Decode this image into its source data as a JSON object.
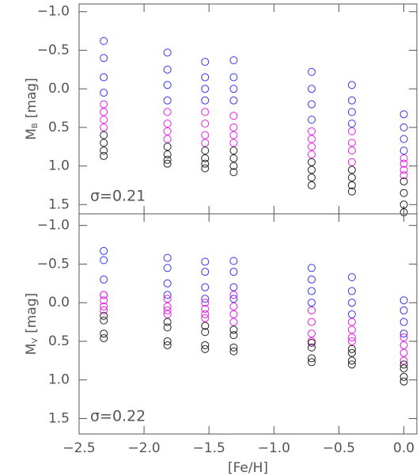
{
  "chart_data": [
    {
      "type": "scatter",
      "ylabel_main": "M",
      "ylabel_sub": "B",
      "ylabel_unit": "[mag]",
      "annotation": "σ=0.21",
      "xlim": [
        -2.5,
        0.1
      ],
      "ylim": [
        -1.1,
        1.62
      ],
      "y_inverted": true,
      "xticks": [
        -2.5,
        -2.0,
        -1.5,
        -1.0,
        -0.5,
        0.0
      ],
      "yticks": [
        {
          "value": -1.0,
          "label": "−1.0"
        },
        {
          "value": -0.5,
          "label": "−0.5"
        },
        {
          "value": 0.0,
          "label": "0.0"
        },
        {
          "value": 0.5,
          "label": "0.5"
        },
        {
          "value": 1.0,
          "label": "1.0"
        },
        {
          "value": 1.5,
          "label": "1.5"
        }
      ],
      "series": [
        {
          "color": "#3535e8",
          "x": [
            -2.31,
            -2.31,
            -2.31,
            -2.31,
            -1.82,
            -1.82,
            -1.82,
            -1.82,
            -1.53,
            -1.53,
            -1.53,
            -1.53,
            -1.31,
            -1.31,
            -1.31,
            -1.31,
            -0.71,
            -0.71,
            -0.71,
            -0.71,
            -0.4,
            -0.4,
            -0.4,
            -0.4,
            0.0,
            0.0,
            0.0,
            0.0
          ],
          "values": [
            -0.62,
            -0.4,
            -0.15,
            0.05,
            -0.47,
            -0.25,
            -0.05,
            0.15,
            -0.35,
            -0.15,
            0.0,
            0.15,
            -0.37,
            -0.15,
            0.0,
            0.15,
            -0.22,
            0.0,
            0.2,
            0.4,
            -0.05,
            0.15,
            0.3,
            0.45,
            0.33,
            0.5,
            0.65,
            0.8
          ]
        },
        {
          "color": "#e020e0",
          "x": [
            -2.31,
            -2.31,
            -2.31,
            -2.31,
            -1.82,
            -1.82,
            -1.82,
            -1.82,
            -1.53,
            -1.53,
            -1.53,
            -1.53,
            -1.31,
            -1.31,
            -1.31,
            -1.31,
            -0.71,
            -0.71,
            -0.71,
            -0.71,
            -0.4,
            -0.4,
            -0.4,
            -0.4,
            0.0,
            0.0,
            0.0,
            0.0
          ],
          "values": [
            0.2,
            0.3,
            0.4,
            0.5,
            0.3,
            0.45,
            0.55,
            0.65,
            0.3,
            0.45,
            0.6,
            0.7,
            0.35,
            0.5,
            0.6,
            0.7,
            0.55,
            0.65,
            0.75,
            0.85,
            0.55,
            0.7,
            0.8,
            0.95,
            0.9,
            0.97,
            1.05,
            1.12
          ]
        },
        {
          "color": "#222222",
          "x": [
            -2.31,
            -2.31,
            -2.31,
            -2.31,
            -1.82,
            -1.82,
            -1.82,
            -1.82,
            -1.53,
            -1.53,
            -1.53,
            -1.53,
            -1.31,
            -1.31,
            -1.31,
            -1.31,
            -0.71,
            -0.71,
            -0.71,
            -0.71,
            -0.4,
            -0.4,
            -0.4,
            -0.4,
            0.0,
            0.0,
            0.0,
            0.0
          ],
          "values": [
            0.6,
            0.7,
            0.8,
            0.87,
            0.75,
            0.85,
            0.92,
            0.97,
            0.8,
            0.9,
            0.97,
            1.03,
            0.8,
            0.9,
            1.0,
            1.08,
            0.95,
            1.05,
            1.15,
            1.25,
            1.05,
            1.15,
            1.25,
            1.33,
            1.2,
            1.35,
            1.5,
            1.6
          ]
        }
      ]
    },
    {
      "type": "scatter",
      "ylabel_main": "M",
      "ylabel_sub": "V",
      "ylabel_unit": "[mag]",
      "annotation": "σ=0.22",
      "xlabel": "[Fe/H]",
      "xlim": [
        -2.5,
        0.1
      ],
      "ylim": [
        -1.15,
        1.7
      ],
      "y_inverted": true,
      "xticks": [
        {
          "value": -2.5,
          "label": "−2.5"
        },
        {
          "value": -2.0,
          "label": "−2.0"
        },
        {
          "value": -1.5,
          "label": "−1.5"
        },
        {
          "value": -1.0,
          "label": "−1.0"
        },
        {
          "value": -0.5,
          "label": "−0.5"
        },
        {
          "value": 0.0,
          "label": "0.0"
        }
      ],
      "yticks": [
        {
          "value": -1.0,
          "label": "−1.0"
        },
        {
          "value": -0.5,
          "label": "−0.5"
        },
        {
          "value": 0.0,
          "label": "0.0"
        },
        {
          "value": 0.5,
          "label": "0.5"
        },
        {
          "value": 1.0,
          "label": "1.0"
        },
        {
          "value": 1.5,
          "label": "1.5"
        }
      ],
      "series": [
        {
          "color": "#3535e8",
          "x": [
            -2.31,
            -2.31,
            -2.31,
            -2.31,
            -1.82,
            -1.82,
            -1.82,
            -1.82,
            -1.53,
            -1.53,
            -1.53,
            -1.53,
            -1.31,
            -1.31,
            -1.31,
            -1.31,
            -0.71,
            -0.71,
            -0.71,
            -0.71,
            -0.4,
            -0.4,
            -0.4,
            -0.4,
            0.0,
            0.0,
            0.0,
            0.0
          ],
          "values": [
            -0.67,
            -0.55,
            -0.3,
            -0.1,
            -0.58,
            -0.45,
            -0.25,
            -0.1,
            -0.53,
            -0.4,
            -0.2,
            -0.05,
            -0.54,
            -0.4,
            -0.2,
            -0.05,
            -0.45,
            -0.3,
            -0.15,
            0.0,
            -0.33,
            -0.15,
            0.0,
            0.15,
            -0.03,
            0.1,
            0.25,
            0.4
          ]
        },
        {
          "color": "#e020e0",
          "x": [
            -2.31,
            -2.31,
            -2.31,
            -2.31,
            -1.82,
            -1.82,
            -1.82,
            -1.82,
            -1.53,
            -1.53,
            -1.53,
            -1.53,
            -1.31,
            -1.31,
            -1.31,
            -1.31,
            -0.71,
            -0.71,
            -0.71,
            -0.71,
            -0.4,
            -0.4,
            -0.4,
            -0.4,
            0.0,
            0.0,
            0.0,
            0.0
          ],
          "values": [
            -0.1,
            -0.03,
            0.05,
            0.1,
            -0.05,
            0.05,
            0.1,
            0.15,
            0.0,
            0.08,
            0.15,
            0.2,
            -0.1,
            0.05,
            0.15,
            0.25,
            0.1,
            0.25,
            0.4,
            0.5,
            0.25,
            0.35,
            0.45,
            0.5,
            0.45,
            0.55,
            0.65,
            0.75
          ]
        },
        {
          "color": "#222222",
          "x": [
            -2.31,
            -2.31,
            -2.31,
            -2.31,
            -1.82,
            -1.82,
            -1.82,
            -1.82,
            -1.53,
            -1.53,
            -1.53,
            -1.53,
            -1.31,
            -1.31,
            -1.31,
            -1.31,
            -0.71,
            -0.71,
            -0.71,
            -0.71,
            -0.4,
            -0.4,
            -0.4,
            -0.4,
            0.0,
            0.0,
            0.0,
            0.0
          ],
          "values": [
            0.17,
            0.23,
            0.4,
            0.46,
            0.25,
            0.32,
            0.5,
            0.55,
            0.3,
            0.38,
            0.55,
            0.6,
            0.35,
            0.42,
            0.58,
            0.63,
            0.52,
            0.58,
            0.72,
            0.77,
            0.6,
            0.65,
            0.75,
            0.8,
            0.8,
            0.85,
            0.96,
            1.02
          ]
        }
      ]
    }
  ]
}
